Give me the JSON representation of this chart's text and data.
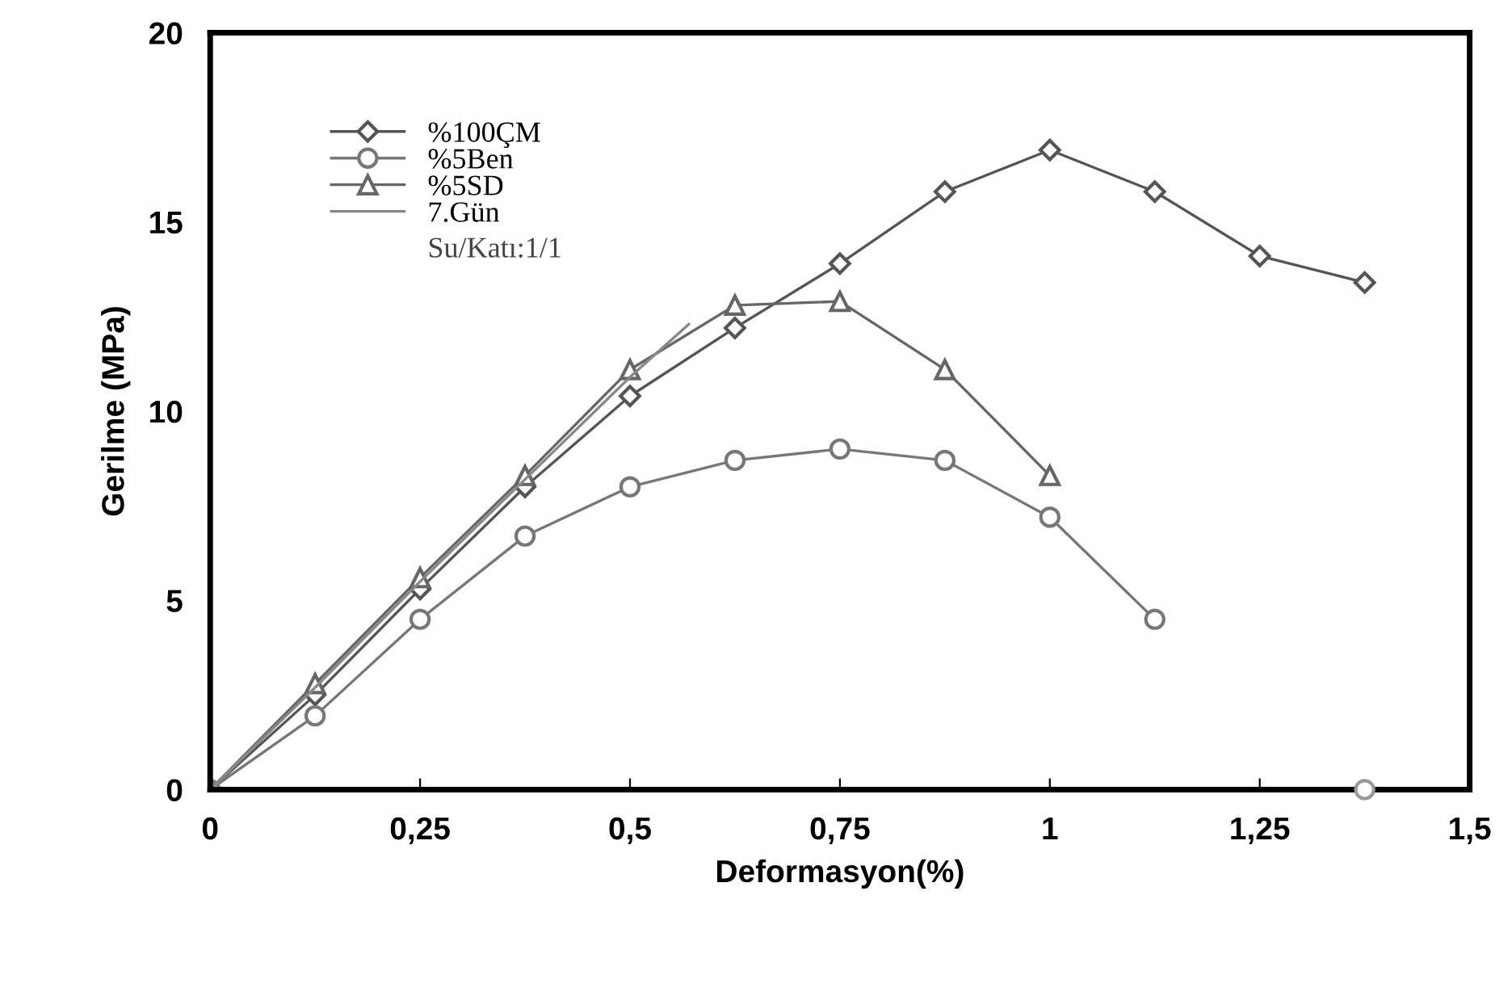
{
  "chart_data": {
    "type": "line",
    "xlabel": "Deformasyon(%)",
    "ylabel": "Gerilme (MPa)",
    "xlim": [
      0,
      1.5
    ],
    "xticks": [
      0,
      {
        "value": 0.25,
        "label": "0,25"
      },
      {
        "value": 0.5,
        "label": "0,5"
      },
      {
        "value": 0.75,
        "label": "0,75"
      },
      1,
      {
        "value": 1.25,
        "label": "1,25"
      },
      {
        "value": 1.5,
        "label": "1,5"
      }
    ],
    "ylim": [
      0,
      20
    ],
    "yticks": [
      0,
      5,
      10,
      15,
      20
    ],
    "grid": false,
    "legend": "top left",
    "line_style": "solid",
    "series": [
      {
        "name": "%100ÇM",
        "color": "#555555",
        "marker": "diamond",
        "x": [
          0,
          0.125,
          0.25,
          0.375,
          0.5,
          0.625,
          0.75,
          0.875,
          1.0,
          1.125,
          1.25,
          1.375
        ],
        "values": [
          0,
          2.5,
          5.3,
          8.0,
          10.4,
          12.2,
          13.9,
          15.8,
          16.9,
          15.8,
          14.1,
          13.4
        ]
      },
      {
        "name": "%5Ben",
        "color": "#777777",
        "marker": "circle",
        "x": [
          0,
          0.125,
          0.25,
          0.375,
          0.5,
          0.625,
          0.75,
          0.875,
          1.0,
          1.125
        ],
        "values": [
          0,
          1.95,
          4.5,
          6.7,
          8.0,
          8.7,
          9.0,
          8.7,
          7.2,
          4.5
        ]
      },
      {
        "name": "%5SD",
        "color": "#666666",
        "marker": "triangle",
        "x": [
          0,
          0.125,
          0.25,
          0.375,
          0.5,
          0.625,
          0.75,
          0.875,
          1.0
        ],
        "values": [
          0,
          2.8,
          5.6,
          8.3,
          11.1,
          12.8,
          12.9,
          11.1,
          8.3
        ]
      },
      {
        "name": "7.Gün",
        "color": "#888888",
        "marker": "none",
        "x": [
          0,
          0.125,
          0.25,
          0.375,
          0.5,
          0.57
        ],
        "values": [
          0,
          2.7,
          5.5,
          8.2,
          10.9,
          12.3
        ]
      },
      {
        "type": "scatter",
        "color": "#999999",
        "marker": "circle",
        "x": [
          1.375
        ],
        "values": [
          0
        ]
      }
    ],
    "annotations": [
      "Su/Katı:1/1"
    ]
  }
}
